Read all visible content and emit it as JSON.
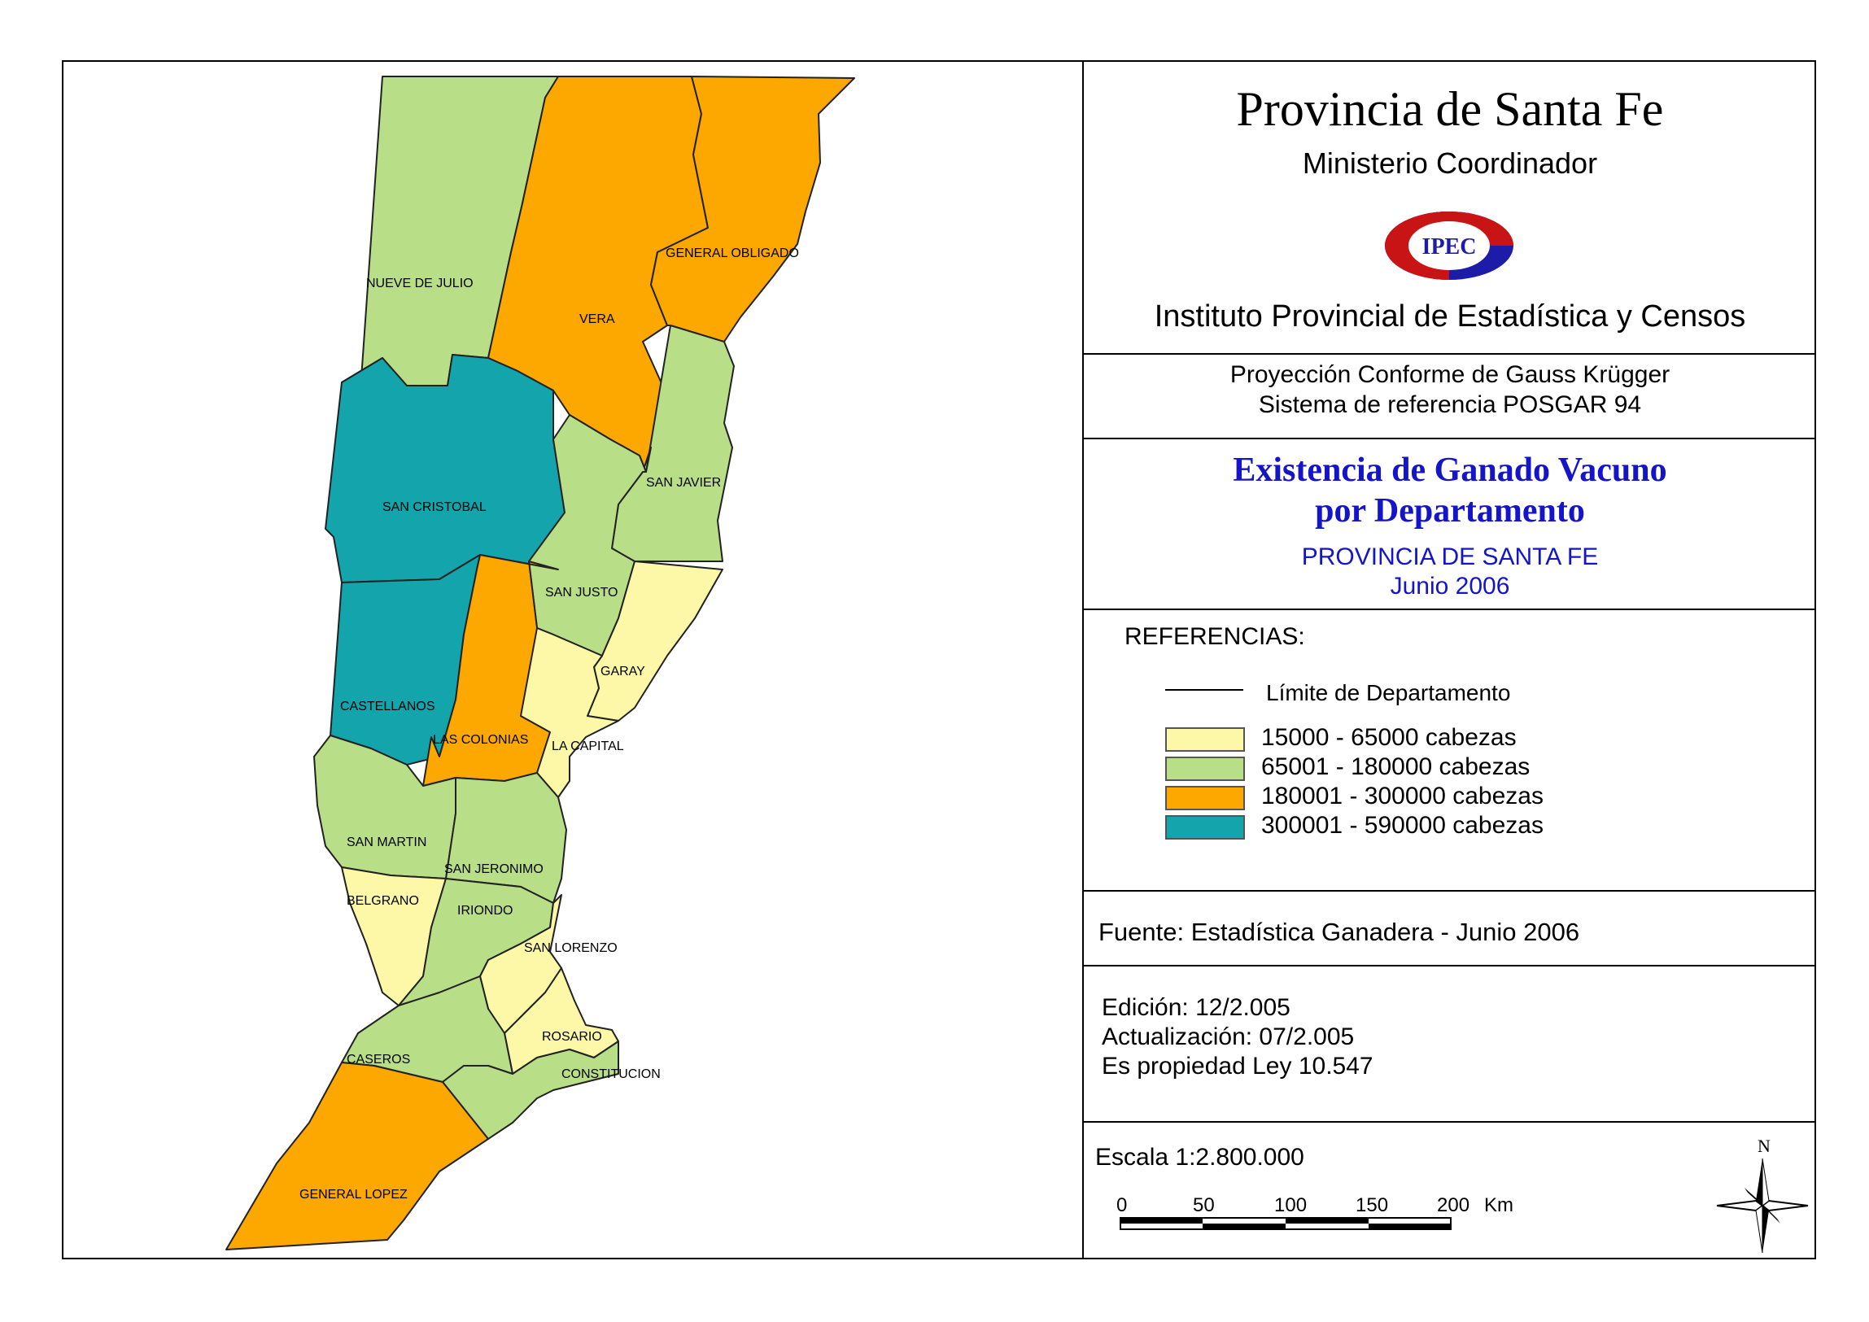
{
  "map": {
    "departments": [
      {
        "name": "NUEVE DE JULIO",
        "class": "65001 - 180000 cabezas"
      },
      {
        "name": "VERA",
        "class": "180001 - 300000 cabezas"
      },
      {
        "name": "GENERAL OBLIGADO",
        "class": "180001 - 300000 cabezas"
      },
      {
        "name": "SAN CRISTOBAL",
        "class": "300001 - 590000 cabezas"
      },
      {
        "name": "SAN JAVIER",
        "class": "65001 - 180000 cabezas"
      },
      {
        "name": "SAN JUSTO",
        "class": "65001 - 180000 cabezas"
      },
      {
        "name": "GARAY",
        "class": "15000 - 65000 cabezas"
      },
      {
        "name": "CASTELLANOS",
        "class": "300001 - 590000 cabezas"
      },
      {
        "name": "LAS COLONIAS",
        "class": "180001 - 300000 cabezas"
      },
      {
        "name": "LA CAPITAL",
        "class": "15000 - 65000 cabezas"
      },
      {
        "name": "SAN MARTIN",
        "class": "65001 - 180000 cabezas"
      },
      {
        "name": "SAN JERONIMO",
        "class": "65001 - 180000 cabezas"
      },
      {
        "name": "BELGRANO",
        "class": "15000 - 65000 cabezas"
      },
      {
        "name": "IRIONDO",
        "class": "65001 - 180000 cabezas"
      },
      {
        "name": "SAN LORENZO",
        "class": "15000 - 65000 cabezas"
      },
      {
        "name": "ROSARIO",
        "class": "15000 - 65000 cabezas"
      },
      {
        "name": "CASEROS",
        "class": "65001 - 180000 cabezas"
      },
      {
        "name": "CONSTITUCION",
        "class": "65001 - 180000 cabezas"
      },
      {
        "name": "GENERAL LOPEZ",
        "class": "180001 - 300000 cabezas"
      }
    ]
  },
  "header": {
    "title": "Provincia de Santa Fe",
    "subtitle": "Ministerio Coordinador",
    "logo_text": "IPEC",
    "institute": "Instituto Provincial de Estadística y Censos"
  },
  "projection": {
    "line1": "Proyección Conforme de Gauss Krügger",
    "line2": "Sistema de referencia POSGAR 94"
  },
  "map_title": {
    "line1": "Existencia de Ganado Vacuno",
    "line2": "por Departamento",
    "region": "PROVINCIA DE SANTA FE",
    "date": "Junio 2006"
  },
  "legend": {
    "heading": "REFERENCIAS:",
    "boundary_label": "Límite de Departamento",
    "classes": [
      {
        "label": "15000 - 65000 cabezas",
        "color": "#fcf8a8"
      },
      {
        "label": "65001 - 180000 cabezas",
        "color": "#b8de88"
      },
      {
        "label": "180001 - 300000 cabezas",
        "color": "#fca800"
      },
      {
        "label": "300001 - 590000 cabezas",
        "color": "#14a4ac"
      }
    ]
  },
  "source": "Fuente:  Estadística Ganadera - Junio 2006",
  "edition": {
    "edicion": "Edición:  12/2.005",
    "actualizacion": "Actualización:  07/2.005",
    "propiedad": "Es propiedad Ley 10.547"
  },
  "scale": {
    "text": "Escala 1:2.800.000",
    "ticks": [
      "0",
      "50",
      "100",
      "150",
      "200"
    ],
    "unit": "Km"
  },
  "north_label": "N"
}
